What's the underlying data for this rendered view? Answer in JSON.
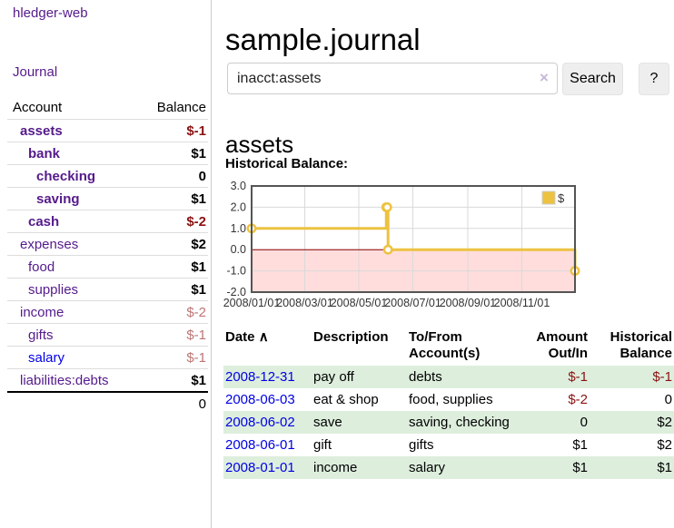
{
  "app": {
    "title": "hledger-web",
    "nav_journal": "Journal"
  },
  "sidebar": {
    "header": {
      "account": "Account",
      "balance": "Balance"
    },
    "accounts": [
      {
        "name": "assets",
        "balance": "$-1"
      },
      {
        "name": "bank",
        "balance": "$1"
      },
      {
        "name": "checking",
        "balance": "0"
      },
      {
        "name": "saving",
        "balance": "$1"
      },
      {
        "name": "cash",
        "balance": "$-2"
      },
      {
        "name": "expenses",
        "balance": "$2"
      },
      {
        "name": "food",
        "balance": "$1"
      },
      {
        "name": "supplies",
        "balance": "$1"
      },
      {
        "name": "income",
        "balance": "$-2"
      },
      {
        "name": "gifts",
        "balance": "$-1"
      },
      {
        "name": "salary",
        "balance": "$-1"
      },
      {
        "name": "liabilities:debts",
        "balance": "$1"
      }
    ],
    "total": "0"
  },
  "main": {
    "title": "sample.journal",
    "search": {
      "value": "inacct:assets",
      "clear_icon": "×",
      "button": "Search",
      "help_button": "?"
    },
    "account_heading": "assets",
    "chart_label": "Historical Balance:"
  },
  "chart_data": {
    "type": "line",
    "step": true,
    "title": "Historical Balance",
    "series": [
      {
        "name": "$",
        "color": "#edc240",
        "points": [
          [
            "2008-01-01",
            1
          ],
          [
            "2008-06-01",
            2
          ],
          [
            "2008-06-02",
            2
          ],
          [
            "2008-06-03",
            0
          ],
          [
            "2008-12-31",
            -1
          ]
        ]
      }
    ],
    "ylim": [
      -2,
      3
    ],
    "yticks": [
      "3.0",
      "2.0",
      "1.0",
      "0.0",
      "-1.0",
      "-2.0"
    ],
    "xticks": [
      "2008/01/01",
      "2008/03/01",
      "2008/05/01",
      "2008/07/01",
      "2008/09/01",
      "2008/11/01"
    ],
    "x_range": [
      "2008-01-01",
      "2008-12-31"
    ],
    "grid": true,
    "legend": {
      "label": "$",
      "position": "top-right"
    },
    "zero_line_color": "#8b0000",
    "below_zero_fill": "#ffdddd",
    "border_color": "#545454",
    "grid_color": "#d9d9d9"
  },
  "register": {
    "headers": {
      "date": "Date",
      "sort_arrow": "∧",
      "description": "Description",
      "accounts_line1": "To/From",
      "accounts_line2": "Account(s)",
      "amount_line1": "Amount",
      "amount_line2": "Out/In",
      "balance_line1": "Historical",
      "balance_line2": "Balance"
    },
    "rows": [
      {
        "date": "2008-12-31",
        "description": "pay off",
        "accounts": "debts",
        "amount": "$-1",
        "balance": "$-1"
      },
      {
        "date": "2008-06-03",
        "description": "eat & shop",
        "accounts": "food, supplies",
        "amount": "$-2",
        "balance": "0"
      },
      {
        "date": "2008-06-02",
        "description": "save",
        "accounts": "saving, checking",
        "amount": "0",
        "balance": "$2"
      },
      {
        "date": "2008-06-01",
        "description": "gift",
        "accounts": "gifts",
        "amount": "$1",
        "balance": "$2"
      },
      {
        "date": "2008-01-01",
        "description": "income",
        "accounts": "salary",
        "amount": "$1",
        "balance": "$1"
      }
    ]
  },
  "colors": {
    "link_purple": "#551a8b",
    "link_blue": "#0000e6",
    "negative_dark": "#8b1212",
    "negative_faded": "#bd7575",
    "row_stripe_green": "#ddeedd",
    "series_gold": "#edc240",
    "button_bg": "#eeeeee"
  }
}
